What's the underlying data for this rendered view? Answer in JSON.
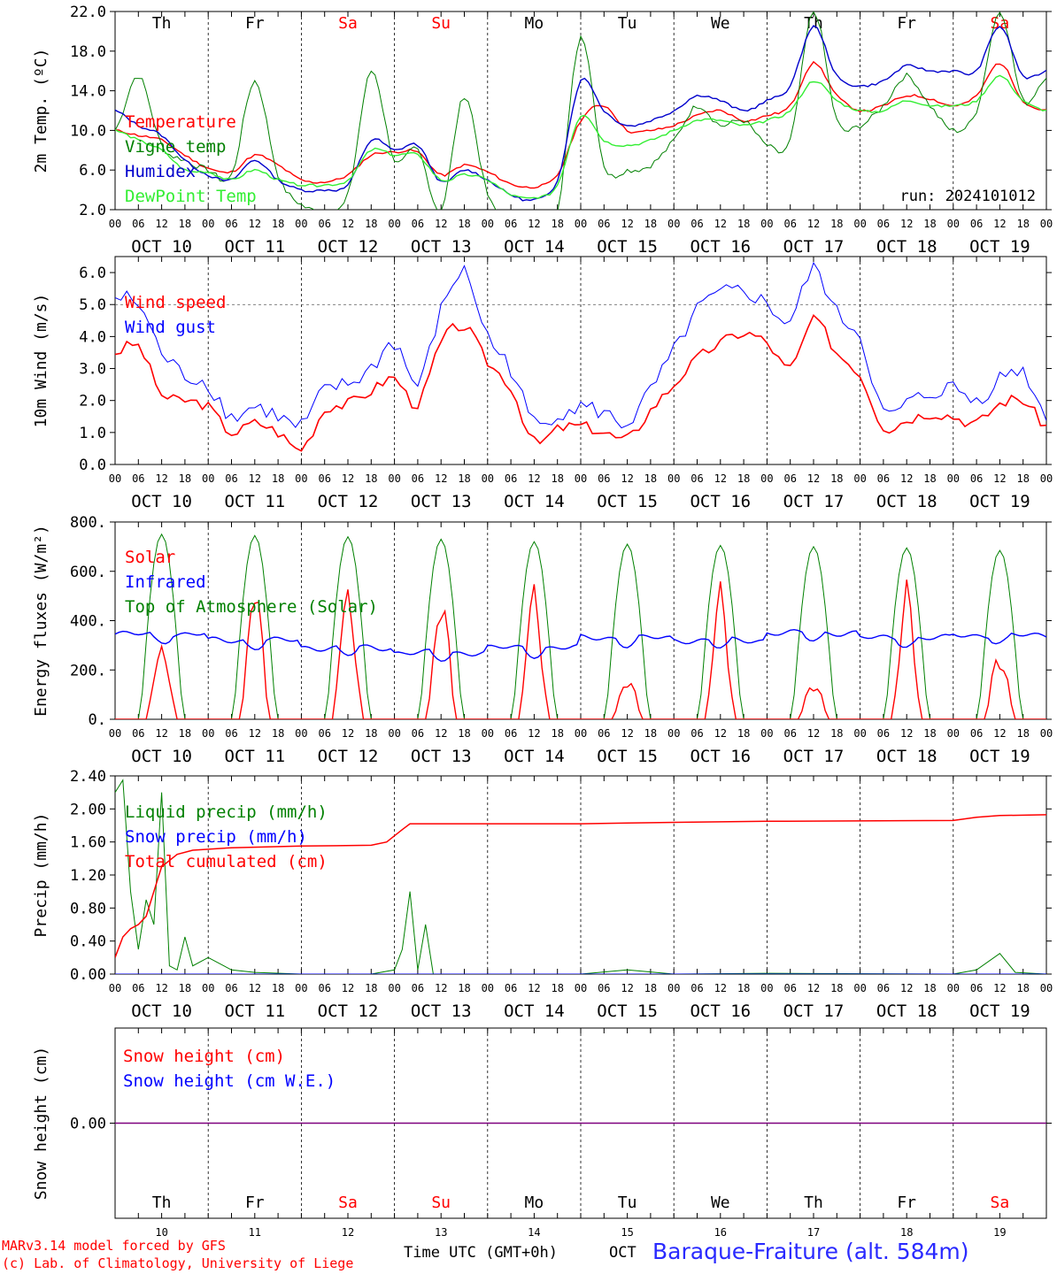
{
  "chart_data": [
    {
      "type": "line",
      "ylabel": "2m Temp. (ºC)",
      "ylim": [
        2.0,
        22.0
      ],
      "yticks": [
        "2.0",
        "6.0",
        "10.0",
        "14.0",
        "18.0",
        "22.0"
      ],
      "annotation": "run: 2024101012",
      "x_hours": [
        0,
        6,
        12,
        18,
        24,
        30,
        36,
        42,
        48,
        54,
        60,
        66,
        72,
        78,
        84,
        90,
        96,
        102,
        108,
        114,
        120,
        126,
        132,
        138,
        144,
        150,
        156,
        162,
        168,
        174,
        180,
        186,
        192,
        198,
        204,
        210,
        216,
        222,
        228,
        234,
        240
      ],
      "series": [
        {
          "name": "Temperature",
          "color": "#ff0000",
          "values": [
            10.0,
            9.5,
            9.0,
            7.5,
            6.2,
            5.8,
            7.5,
            6.5,
            5.0,
            4.8,
            5.5,
            7.5,
            7.8,
            7.8,
            5.5,
            6.5,
            5.8,
            4.6,
            4.3,
            5.5,
            11.0,
            12.5,
            10.0,
            10.0,
            10.5,
            11.5,
            12.0,
            11.0,
            11.5,
            12.5,
            16.8,
            13.5,
            12.0,
            12.5,
            13.5,
            13.2,
            12.5,
            13.5,
            16.8,
            13.0,
            12.0
          ]
        },
        {
          "name": "Vigne temp",
          "color": "#008000",
          "values": [
            10.0,
            15.5,
            8.5,
            7.0,
            6.0,
            5.5,
            15.0,
            5.5,
            2.5,
            2.0,
            3.5,
            16.0,
            7.0,
            8.0,
            2.0,
            13.5,
            3.5,
            1.0,
            1.5,
            2.0,
            19.5,
            6.5,
            6.0,
            6.5,
            9.0,
            12.5,
            10.5,
            11.0,
            8.5,
            9.0,
            22.0,
            11.0,
            10.5,
            12.5,
            15.5,
            12.5,
            10.0,
            12.0,
            22.0,
            13.0,
            15.5
          ]
        },
        {
          "name": "Humidex",
          "color": "#0000cc",
          "values": [
            12.0,
            10.5,
            9.5,
            7.0,
            5.5,
            5.0,
            7.0,
            5.0,
            4.0,
            4.0,
            4.5,
            9.0,
            8.0,
            8.5,
            4.8,
            6.0,
            5.0,
            3.5,
            3.0,
            5.0,
            15.0,
            12.0,
            10.5,
            11.0,
            12.0,
            13.5,
            13.0,
            12.0,
            13.0,
            14.5,
            20.5,
            15.5,
            14.5,
            15.0,
            16.5,
            16.0,
            16.0,
            16.0,
            20.5,
            15.5,
            16.0
          ]
        },
        {
          "name": "DewPoint Temp",
          "color": "#33ee33",
          "values": [
            10.0,
            9.0,
            8.0,
            6.0,
            5.8,
            5.0,
            6.0,
            5.0,
            4.5,
            4.5,
            5.0,
            8.0,
            7.5,
            7.5,
            5.0,
            5.5,
            5.0,
            3.5,
            3.2,
            4.5,
            11.5,
            9.0,
            8.5,
            9.0,
            10.0,
            11.0,
            11.0,
            10.5,
            11.0,
            12.0,
            15.0,
            13.0,
            12.0,
            12.0,
            13.0,
            12.5,
            12.5,
            13.0,
            15.5,
            13.0,
            12.0
          ]
        }
      ]
    },
    {
      "type": "line",
      "ylabel": "10m Wind (m/s)",
      "ylim": [
        0.0,
        6.5
      ],
      "yticks": [
        "0.0",
        "1.0",
        "2.0",
        "3.0",
        "4.0",
        "5.0",
        "6.0"
      ],
      "x_hours": [
        0,
        6,
        12,
        18,
        24,
        30,
        36,
        42,
        48,
        54,
        60,
        66,
        72,
        78,
        84,
        90,
        96,
        102,
        108,
        114,
        120,
        126,
        132,
        138,
        144,
        150,
        156,
        162,
        168,
        174,
        180,
        186,
        192,
        198,
        204,
        210,
        216,
        222,
        228,
        234,
        240
      ],
      "series": [
        {
          "name": "Wind speed",
          "color": "#ff0000",
          "values": [
            3.5,
            3.7,
            2.2,
            2.0,
            1.8,
            1.0,
            1.3,
            1.0,
            0.5,
            1.7,
            1.9,
            2.3,
            2.7,
            1.9,
            3.8,
            4.3,
            3.2,
            2.4,
            0.7,
            1.1,
            1.2,
            1.0,
            0.8,
            1.7,
            2.5,
            3.3,
            3.8,
            4.1,
            3.8,
            3.0,
            4.5,
            3.5,
            2.8,
            1.2,
            1.4,
            1.6,
            1.5,
            1.3,
            1.9,
            2.0,
            1.2
          ]
        },
        {
          "name": "Wind gust",
          "color": "#0000ff",
          "values": [
            5.2,
            5.0,
            3.5,
            2.8,
            2.5,
            1.5,
            1.8,
            1.5,
            1.2,
            2.3,
            2.5,
            3.0,
            3.8,
            2.5,
            4.8,
            6.0,
            4.0,
            3.0,
            1.3,
            1.6,
            1.8,
            1.6,
            1.3,
            2.3,
            3.5,
            4.8,
            5.3,
            5.4,
            5.0,
            4.5,
            6.1,
            4.7,
            4.0,
            1.6,
            1.9,
            2.2,
            2.4,
            2.0,
            2.7,
            2.9,
            1.5
          ]
        }
      ],
      "reference_line": 5.0
    },
    {
      "type": "line",
      "ylabel": "Energy fluxes (W/m²)",
      "ylim": [
        0,
        800
      ],
      "yticks": [
        "0.",
        "200.",
        "400.",
        "600.",
        "800."
      ],
      "days": [
        {
          "day": 10,
          "toa_peak": 750,
          "solar_peak": 295,
          "infrared": 345
        },
        {
          "day": 11,
          "toa_peak": 745,
          "solar_peak": 480,
          "infrared": 320
        },
        {
          "day": 12,
          "toa_peak": 740,
          "solar_peak": 500,
          "infrared": 290
        },
        {
          "day": 13,
          "toa_peak": 730,
          "solar_peak": 450,
          "infrared": 270
        },
        {
          "day": 14,
          "toa_peak": 720,
          "solar_peak": 480,
          "infrared": 290
        },
        {
          "day": 15,
          "toa_peak": 710,
          "solar_peak": 160,
          "infrared": 330
        },
        {
          "day": 16,
          "toa_peak": 705,
          "solar_peak": 460,
          "infrared": 320
        },
        {
          "day": 17,
          "toa_peak": 700,
          "solar_peak": 150,
          "infrared": 350
        },
        {
          "day": 18,
          "toa_peak": 695,
          "solar_peak": 460,
          "infrared": 330
        },
        {
          "day": 19,
          "toa_peak": 685,
          "solar_peak": 260,
          "infrared": 340
        }
      ],
      "series": [
        {
          "name": "Solar",
          "color": "#ff0000"
        },
        {
          "name": "Infrared",
          "color": "#0000ff"
        },
        {
          "name": "Top of Atmosphere (Solar)",
          "color": "#008000"
        }
      ]
    },
    {
      "type": "line",
      "ylabel": "Precip (mm/h)",
      "ylim": [
        0.0,
        2.4
      ],
      "yticks": [
        "0.00",
        "0.40",
        "0.80",
        "1.20",
        "1.60",
        "2.00",
        "2.40"
      ],
      "series": [
        {
          "name": "Liquid precip (mm/h)",
          "color": "#008000",
          "points": [
            [
              0,
              2.2
            ],
            [
              2,
              2.35
            ],
            [
              4,
              1.0
            ],
            [
              6,
              0.3
            ],
            [
              8,
              0.9
            ],
            [
              10,
              0.6
            ],
            [
              12,
              2.2
            ],
            [
              14,
              0.1
            ],
            [
              16,
              0.05
            ],
            [
              18,
              0.45
            ],
            [
              20,
              0.1
            ],
            [
              24,
              0.2
            ],
            [
              30,
              0.05
            ],
            [
              36,
              0.02
            ],
            [
              48,
              0.0
            ],
            [
              60,
              0.0
            ],
            [
              66,
              0.0
            ],
            [
              72,
              0.05
            ],
            [
              74,
              0.3
            ],
            [
              76,
              1.0
            ],
            [
              78,
              0.05
            ],
            [
              80,
              0.6
            ],
            [
              82,
              0.0
            ],
            [
              120,
              0.0
            ],
            [
              132,
              0.05
            ],
            [
              144,
              0.0
            ],
            [
              168,
              0.01
            ],
            [
              216,
              0.0
            ],
            [
              222,
              0.05
            ],
            [
              228,
              0.25
            ],
            [
              232,
              0.02
            ],
            [
              240,
              0.0
            ]
          ]
        },
        {
          "name": "Snow precip (mm/h)",
          "color": "#0000ff",
          "points": [
            [
              0,
              0
            ],
            [
              240,
              0
            ]
          ]
        },
        {
          "name": "Total cumulated (cm)",
          "color": "#ff0000",
          "points": [
            [
              0,
              0.2
            ],
            [
              2,
              0.45
            ],
            [
              4,
              0.55
            ],
            [
              6,
              0.6
            ],
            [
              8,
              0.7
            ],
            [
              10,
              1.0
            ],
            [
              12,
              1.3
            ],
            [
              16,
              1.45
            ],
            [
              20,
              1.5
            ],
            [
              30,
              1.53
            ],
            [
              48,
              1.55
            ],
            [
              66,
              1.56
            ],
            [
              70,
              1.6
            ],
            [
              74,
              1.75
            ],
            [
              76,
              1.82
            ],
            [
              120,
              1.82
            ],
            [
              132,
              1.83
            ],
            [
              168,
              1.85
            ],
            [
              216,
              1.86
            ],
            [
              222,
              1.9
            ],
            [
              228,
              1.92
            ],
            [
              240,
              1.93
            ]
          ]
        }
      ]
    },
    {
      "type": "line",
      "ylabel": "Snow height (cm)",
      "ylim": [
        -1.0,
        1.0
      ],
      "yticks": [
        "0.00"
      ],
      "series": [
        {
          "name": "Snow height (cm)",
          "color": "#ff0000",
          "points": [
            [
              0,
              0
            ],
            [
              240,
              0
            ]
          ]
        },
        {
          "name": "Snow height (cm W.E.)",
          "color": "#0000ff",
          "points": [
            [
              0,
              0
            ],
            [
              240,
              0
            ]
          ]
        }
      ]
    }
  ],
  "weekday_labels": [
    "Th",
    "Fr",
    "Sa",
    "Su",
    "Mo",
    "Tu",
    "We",
    "Th",
    "Fr",
    "Sa"
  ],
  "weekend_color": "#ff0000",
  "hour_ticks": [
    "00",
    "06",
    "12",
    "18"
  ],
  "date_labels": [
    "OCT 10",
    "OCT 11",
    "OCT 12",
    "OCT 13",
    "OCT 14",
    "OCT 15",
    "OCT 16",
    "OCT 17",
    "OCT 18",
    "OCT 19"
  ],
  "day_numbers": [
    "10",
    "11",
    "12",
    "13",
    "14",
    "15",
    "16",
    "17",
    "18",
    "19"
  ],
  "footer": {
    "model_line": "MARv3.14 model forced by GFS",
    "copyright": "(c) Lab. of Climatology, University of Liege",
    "time_axis": "Time UTC (GMT+0h)",
    "month": "OCT",
    "station": "Baraque-Fraiture (alt. 584m)"
  }
}
